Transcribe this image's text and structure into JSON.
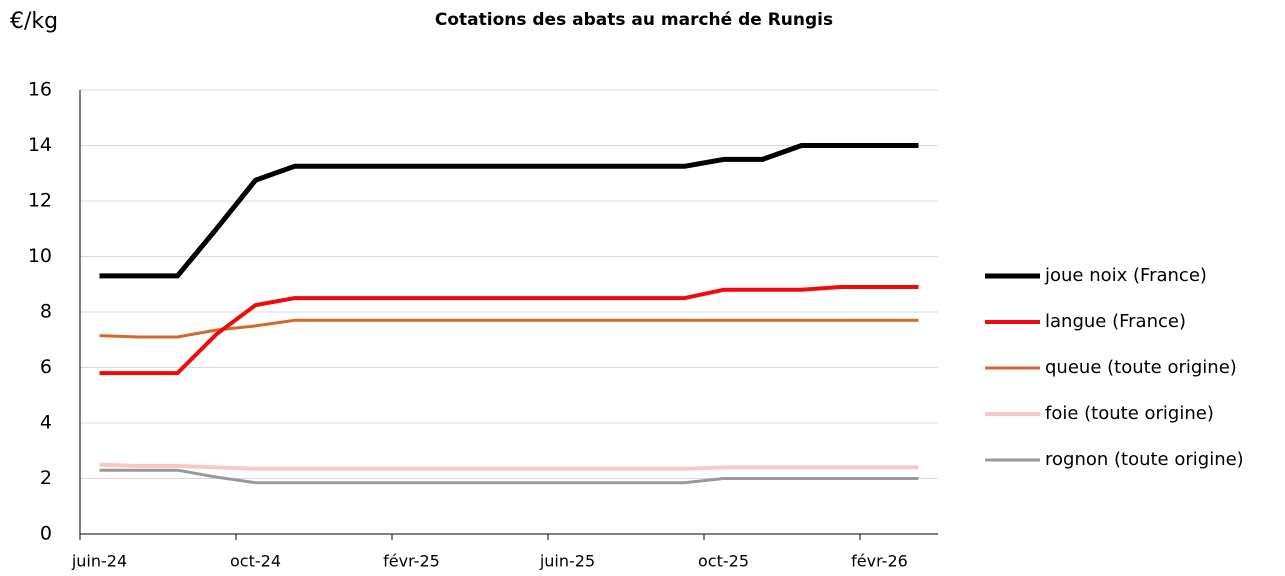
{
  "chart_data": {
    "type": "line",
    "title": "Cotations des abats au marché de Rungis",
    "y_label": "€/kg",
    "categories": [
      "juin-24",
      null,
      null,
      null,
      "oct-24",
      null,
      null,
      null,
      "févr-25",
      null,
      null,
      null,
      "juin-25",
      null,
      null,
      null,
      "oct-25",
      null,
      null,
      null,
      "févr-26",
      null
    ],
    "ylim": [
      0,
      16
    ],
    "yticks": [
      0,
      2,
      4,
      6,
      8,
      10,
      12,
      14,
      16
    ],
    "grid": true,
    "legend": "right",
    "series": [
      {
        "name": "joue noix (France)",
        "color": "#000000",
        "values": [
          9.3,
          9.3,
          9.3,
          11,
          12.75,
          13.25,
          13.25,
          13.25,
          13.25,
          13.25,
          13.25,
          13.25,
          13.25,
          13.25,
          13.25,
          13.25,
          13.5,
          13.5,
          14,
          14,
          14,
          14
        ]
      },
      {
        "name": "langue (France)",
        "color": "#f00a0a",
        "values": [
          5.8,
          5.8,
          5.8,
          7.2,
          8.25,
          8.5,
          8.5,
          8.5,
          8.5,
          8.5,
          8.5,
          8.5,
          8.5,
          8.5,
          8.5,
          8.5,
          8.8,
          8.8,
          8.8,
          8.9,
          8.9,
          8.9
        ]
      },
      {
        "name": "queue (toute origine)",
        "color": "#d2692a",
        "values": [
          7.15,
          7.1,
          7.1,
          7.35,
          7.5,
          7.7,
          7.7,
          7.7,
          7.7,
          7.7,
          7.7,
          7.7,
          7.7,
          7.7,
          7.7,
          7.7,
          7.7,
          7.7,
          7.7,
          7.7,
          7.7,
          7.7
        ]
      },
      {
        "name": "foie (toute origine)",
        "color": "#f8c8c8",
        "values": [
          2.5,
          2.45,
          2.45,
          2.4,
          2.35,
          2.35,
          2.35,
          2.35,
          2.35,
          2.35,
          2.35,
          2.35,
          2.35,
          2.35,
          2.35,
          2.35,
          2.4,
          2.4,
          2.4,
          2.4,
          2.4,
          2.4
        ]
      },
      {
        "name": "rognon (toute origine)",
        "color": "#999999",
        "values": [
          2.3,
          2.3,
          2.3,
          2.05,
          1.85,
          1.85,
          1.85,
          1.85,
          1.85,
          1.85,
          1.85,
          1.85,
          1.85,
          1.85,
          1.85,
          1.85,
          2,
          2,
          2,
          2,
          2,
          2
        ]
      }
    ]
  }
}
